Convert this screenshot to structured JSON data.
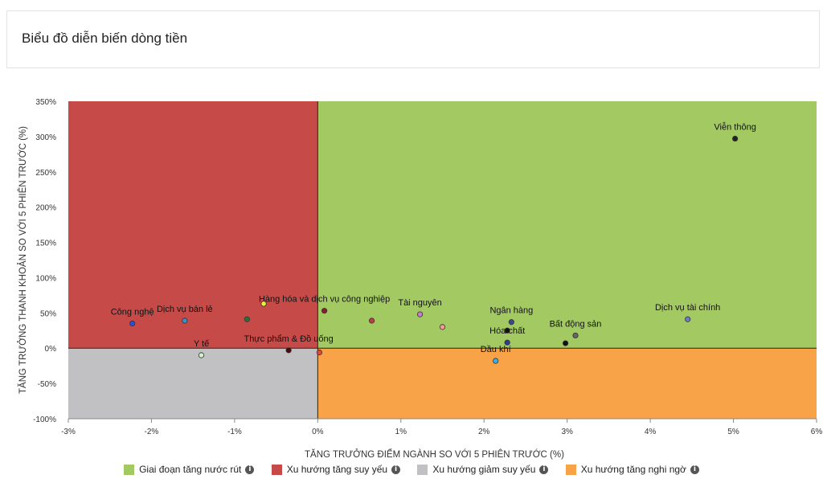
{
  "header": {
    "title": "Biểu đồ diễn biến dòng tiền"
  },
  "chart_data": {
    "type": "scatter",
    "xlabel": "TĂNG TRƯỞNG ĐIỂM NGÀNH SO VỚI 5 PHIÊN TRƯỚC (%)",
    "ylabel": "TĂNG TRƯỞNG THANH KHOẢN SO VỚI 5 PHIÊN TRƯỚC (%)",
    "xlim": [
      -3,
      6
    ],
    "ylim": [
      -100,
      350
    ],
    "x_ticks": [
      -3,
      -2,
      -1,
      0,
      1,
      2,
      3,
      4,
      5,
      6
    ],
    "y_ticks": [
      -100,
      -50,
      0,
      50,
      100,
      150,
      200,
      250,
      300,
      350
    ],
    "x_tick_labels": [
      "-3%",
      "-2%",
      "-1%",
      "0%",
      "1%",
      "2%",
      "3%",
      "4%",
      "5%",
      "6%"
    ],
    "y_tick_labels": [
      "-100%",
      "-50%",
      "0%",
      "50%",
      "100%",
      "150%",
      "200%",
      "250%",
      "300%",
      "350%"
    ],
    "quadrants": [
      {
        "name": "Giai đoạn tăng nước rút",
        "color": "#a3c963",
        "x": [
          0,
          6
        ],
        "y": [
          0,
          350
        ]
      },
      {
        "name": "Xu hướng tăng suy yếu",
        "color": "#c64b48",
        "x": [
          -3,
          0
        ],
        "y": [
          0,
          350
        ]
      },
      {
        "name": "Xu hướng giảm suy yếu",
        "color": "#c1c1c4",
        "x": [
          -3,
          0
        ],
        "y": [
          -100,
          0
        ]
      },
      {
        "name": "Xu hướng tăng nghi ngờ",
        "color": "#f8a348",
        "x": [
          0,
          6
        ],
        "y": [
          -100,
          0
        ]
      }
    ],
    "points": [
      {
        "label": "Viễn thông",
        "x": 5.02,
        "y": 297,
        "color": "#222222"
      },
      {
        "label": "Dịch vụ tài chính",
        "x": 4.45,
        "y": 41,
        "color": "#6a7ccc"
      },
      {
        "label": "Bất động sản",
        "x": 3.1,
        "y": 18,
        "color": "#666666"
      },
      {
        "label": "",
        "x": 2.98,
        "y": 7,
        "color": "#111111"
      },
      {
        "label": "Ngân hàng",
        "x": 2.33,
        "y": 37,
        "color": "#3b4a8c"
      },
      {
        "label": "Hóa chất",
        "x": 2.28,
        "y": 8,
        "color": "#2a3f8f"
      },
      {
        "label": "",
        "x": 2.28,
        "y": 25,
        "color": "#111111"
      },
      {
        "label": "Dầu khí",
        "x": 2.14,
        "y": -18,
        "color": "#3cb0e6"
      },
      {
        "label": "",
        "x": 1.5,
        "y": 30,
        "color": "#f49a9a"
      },
      {
        "label": "Tài nguyên",
        "x": 1.23,
        "y": 48,
        "color": "#c77ccf"
      },
      {
        "label": "",
        "x": 0.65,
        "y": 39,
        "color": "#c23a4a"
      },
      {
        "label": "Hàng hóa và dịch vụ công nghiệp",
        "x": 0.08,
        "y": 53,
        "color": "#8a1c2c"
      },
      {
        "label": "",
        "x": 0.02,
        "y": -6,
        "color": "#e04a3a"
      },
      {
        "label": "Thực phẩm & Đồ uống",
        "x": -0.35,
        "y": -3,
        "color": "#4a0a0a"
      },
      {
        "label": "",
        "x": -0.65,
        "y": 63,
        "color": "#f0f03a"
      },
      {
        "label": "",
        "x": -0.85,
        "y": 41,
        "color": "#2c6e2c"
      },
      {
        "label": "Y tế",
        "x": -1.4,
        "y": -10,
        "color": "#d4f0c8"
      },
      {
        "label": "Dịch vụ bán lẻ",
        "x": -1.6,
        "y": 39,
        "color": "#3a8fd0"
      },
      {
        "label": "Công nghệ",
        "x": -2.23,
        "y": 35,
        "color": "#2a4fd0"
      }
    ],
    "legend_position": "bottom"
  },
  "legend": {
    "items": [
      {
        "label": "Giai đoạn tăng nước rút",
        "color": "#a3c963",
        "icon": "info-icon"
      },
      {
        "label": "Xu hướng tăng suy yếu",
        "color": "#c64b48",
        "icon": "info-icon"
      },
      {
        "label": "Xu hướng giảm suy yếu",
        "color": "#c1c1c4",
        "icon": "info-icon"
      },
      {
        "label": "Xu hướng tăng nghi ngờ",
        "color": "#f8a348",
        "icon": "info-icon"
      }
    ],
    "info_glyph": "i"
  }
}
